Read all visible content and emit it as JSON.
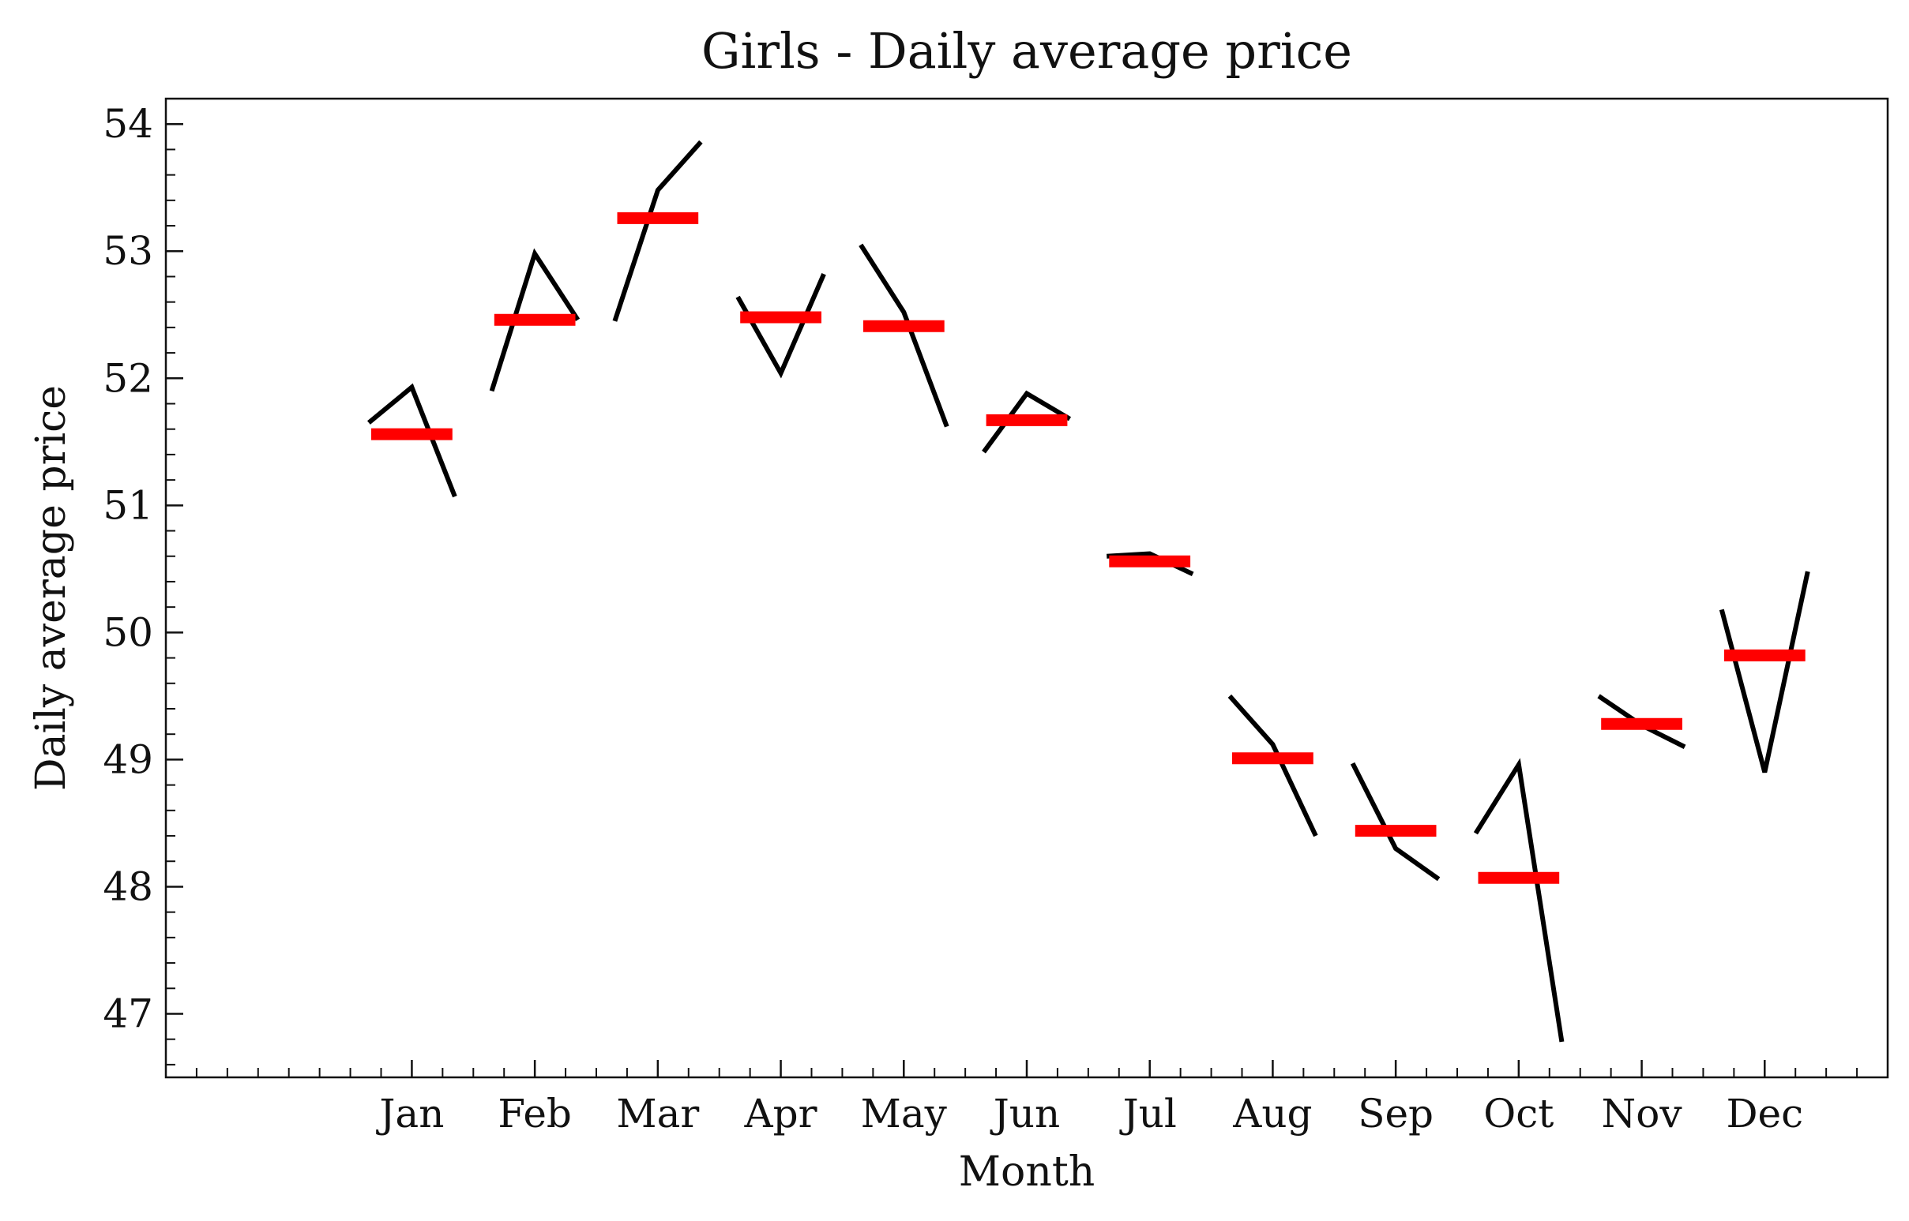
{
  "chart_data": {
    "type": "line",
    "title": "Girls - Daily average price",
    "xlabel": "Month",
    "ylabel": "Daily average price",
    "ylim": [
      46.5,
      54.2
    ],
    "y_ticks": [
      "47",
      "48",
      "49",
      "50",
      "51",
      "52",
      "53",
      "54"
    ],
    "categories": [
      "Jan",
      "Feb",
      "Mar",
      "Apr",
      "May",
      "Jun",
      "Jul",
      "Aug",
      "Sep",
      "Oct",
      "Nov",
      "Dec"
    ],
    "series": [
      {
        "color": "#000000",
        "values": [
          [
            51.65,
            51.93,
            51.07
          ],
          [
            51.9,
            52.98,
            52.46
          ],
          [
            52.45,
            53.48,
            53.86
          ],
          [
            52.64,
            52.04,
            52.82
          ],
          [
            53.05,
            52.52,
            51.62
          ],
          [
            51.42,
            51.88,
            51.68
          ],
          [
            50.6,
            50.62,
            50.46
          ],
          [
            49.5,
            49.12,
            48.4
          ],
          [
            48.97,
            48.3,
            48.06
          ],
          [
            48.42,
            48.96,
            46.78
          ],
          [
            49.5,
            49.27,
            49.1
          ],
          [
            50.18,
            48.9,
            50.48
          ]
        ]
      },
      {
        "color": "#ff0000",
        "values": [
          51.56,
          52.46,
          53.26,
          52.48,
          52.41,
          51.67,
          50.56,
          49.01,
          48.44,
          48.07,
          49.28,
          49.82
        ]
      }
    ],
    "grid": false,
    "legend": "none",
    "tick_direction": "in",
    "minor_ticks": true
  }
}
